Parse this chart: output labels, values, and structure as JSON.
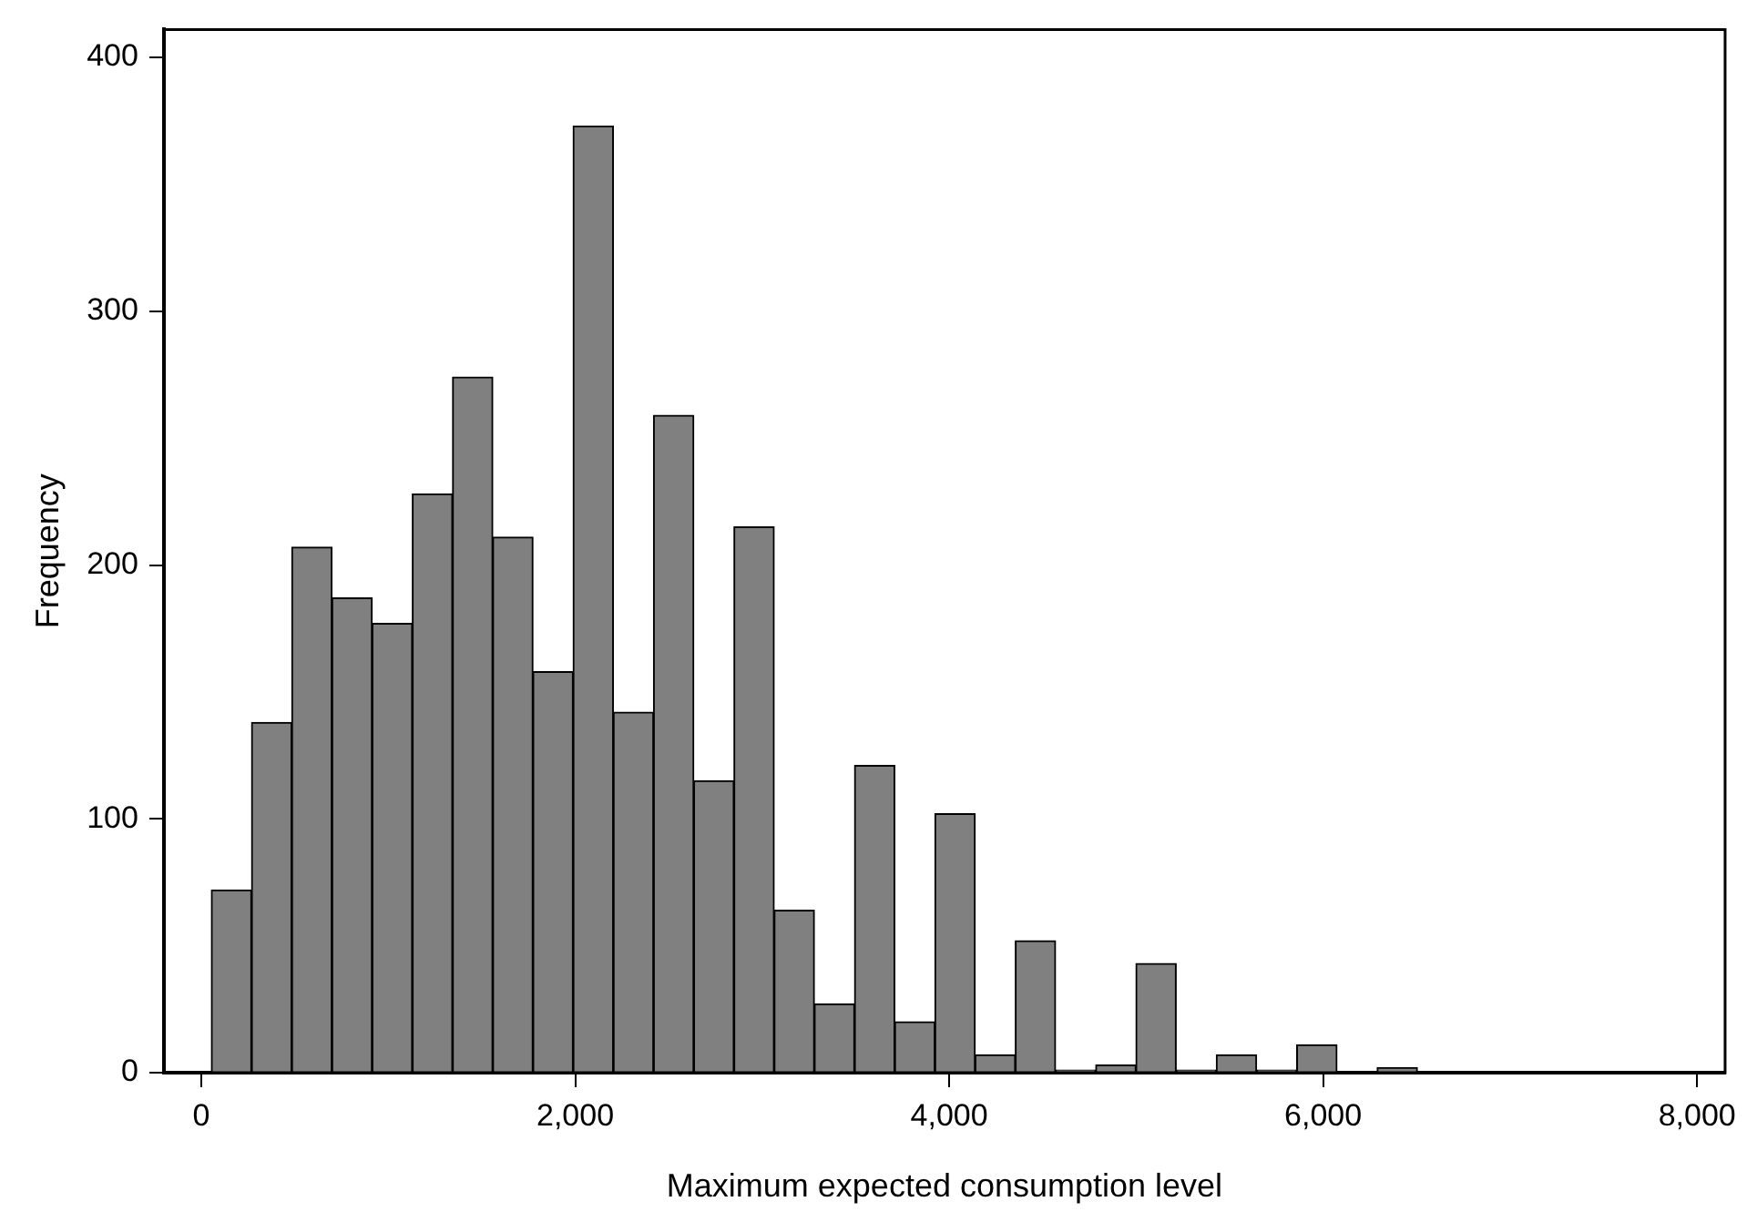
{
  "chart_data": {
    "type": "histogram",
    "xlabel": "Maximum expected consumption level",
    "ylabel": "Frequency",
    "bins": [
      54,
      269,
      484,
      699,
      914,
      1129,
      1344,
      1559,
      1774,
      1989,
      2204,
      2419,
      2634,
      2849,
      3064,
      3279,
      3494,
      3709,
      3924,
      4139,
      4354,
      4569,
      4784,
      4999,
      5214,
      5429,
      5644,
      5859,
      6074,
      6289,
      6504
    ],
    "values": [
      72,
      138,
      207,
      187,
      177,
      228,
      274,
      211,
      158,
      373,
      142,
      259,
      115,
      215,
      64,
      27,
      121,
      20,
      102,
      7,
      52,
      1,
      3,
      43,
      1,
      7,
      1,
      11,
      0,
      2
    ],
    "color": "#808080",
    "xlim": [
      -200,
      8150
    ],
    "xticks": [
      0,
      {
        "value": 2000,
        "label": "2,000"
      },
      {
        "value": 4000,
        "label": "4,000"
      },
      {
        "value": 6000,
        "label": "6,000"
      },
      {
        "value": 8000,
        "label": "8,000"
      }
    ],
    "ylim": [
      0,
      411
    ],
    "yticks": [
      0,
      100,
      200,
      300,
      400
    ],
    "grid": false,
    "legend": false
  }
}
